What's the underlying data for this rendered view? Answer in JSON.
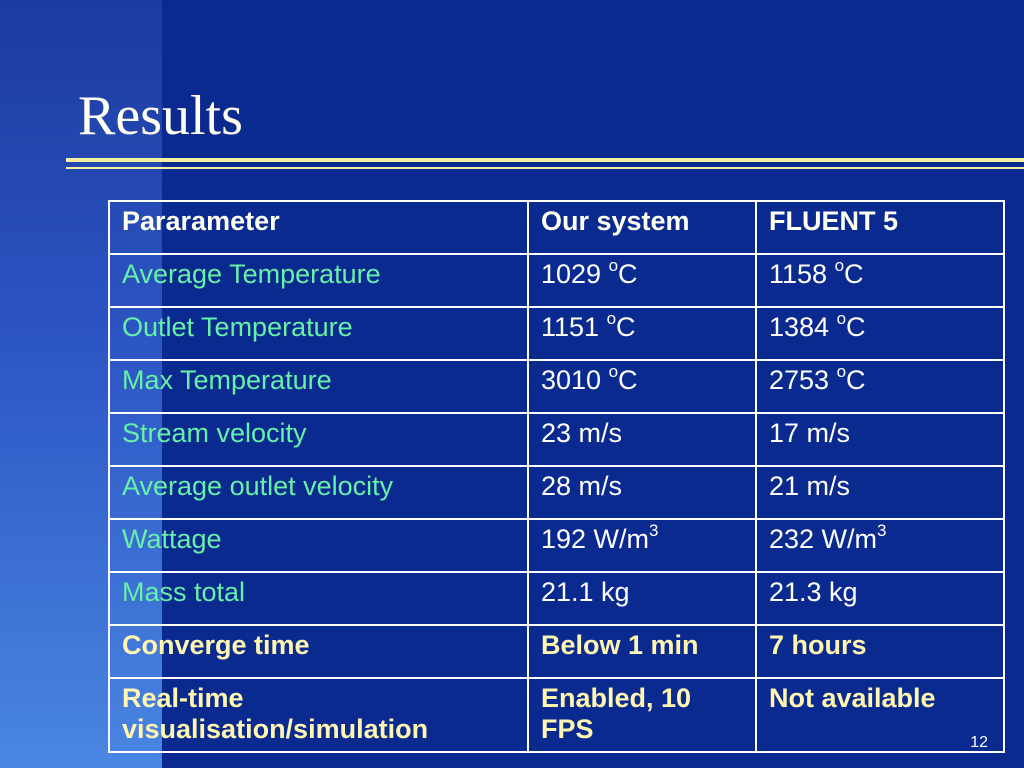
{
  "slide": {
    "title": "Results",
    "page_number": "12"
  },
  "table": {
    "header": [
      "Pararameter",
      "Our system",
      "FLUENT 5"
    ],
    "rows": [
      {
        "param": "Average Temperature",
        "ours": {
          "value": "1029 ",
          "sup": "o",
          "unit": "C"
        },
        "fluent": {
          "value": "1158 ",
          "sup": "o",
          "unit": "C"
        }
      },
      {
        "param": "Outlet Temperature",
        "ours": {
          "value": "1151 ",
          "sup": "o",
          "unit": "C"
        },
        "fluent": {
          "value": "1384 ",
          "sup": "o",
          "unit": "C"
        }
      },
      {
        "param": "Max Temperature",
        "ours": {
          "value": "3010 ",
          "sup": "o",
          "unit": "C"
        },
        "fluent": {
          "value": "2753 ",
          "sup": "o",
          "unit": "C"
        }
      },
      {
        "param": "Stream velocity",
        "ours": {
          "value": "23 m/s"
        },
        "fluent": {
          "value": "17 m/s"
        }
      },
      {
        "param": "Average outlet velocity",
        "ours": {
          "value": "28 m/s"
        },
        "fluent": {
          "value": "21 m/s"
        }
      },
      {
        "param": "Wattage",
        "ours": {
          "value": "192 W/m",
          "sup": "3"
        },
        "fluent": {
          "value": "232 W/m",
          "sup": "3"
        }
      },
      {
        "param": "Mass total",
        "ours": {
          "value": "21.1 kg"
        },
        "fluent": {
          "value": "21.3 kg"
        }
      },
      {
        "param": "Converge time",
        "ours": {
          "value": "Below 1 min"
        },
        "fluent": {
          "value": "7 hours"
        }
      },
      {
        "param": "Real-time visualisation/simulation",
        "ours": {
          "value": "Enabled, 10 FPS"
        },
        "fluent": {
          "value": "Not available"
        }
      }
    ]
  }
}
